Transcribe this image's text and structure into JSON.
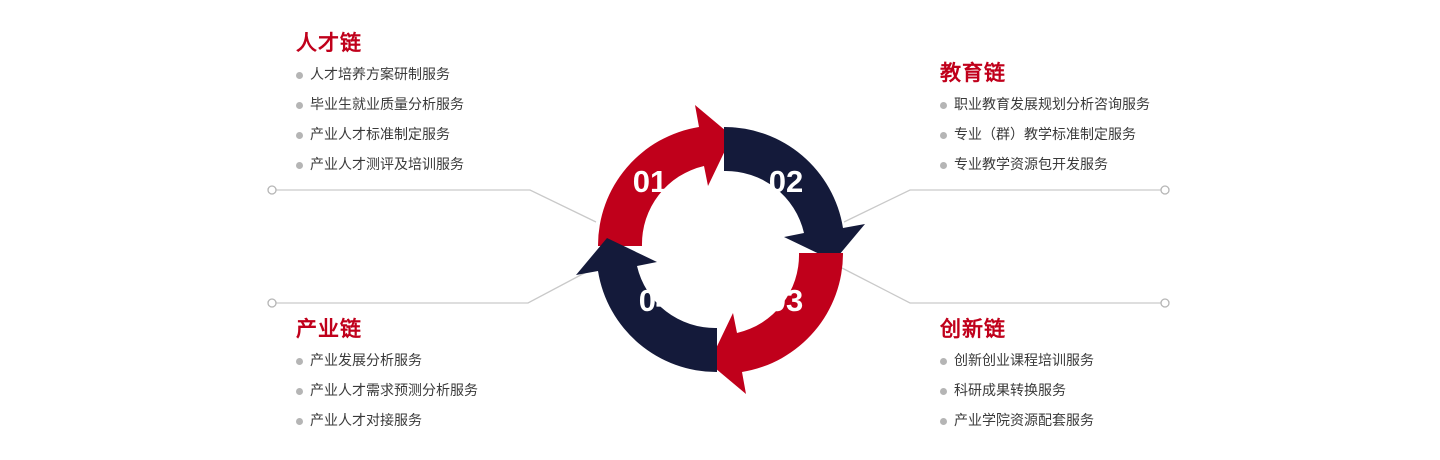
{
  "groups": {
    "talent": {
      "title": "人才链",
      "items": [
        "人才培养方案研制服务",
        "毕业生就业质量分析服务",
        "产业人才标准制定服务",
        "产业人才测评及培训服务"
      ]
    },
    "education": {
      "title": "教育链",
      "items": [
        "职业教育发展规划分析咨询服务",
        "专业（群）教学标准制定服务",
        "专业教学资源包开发服务"
      ]
    },
    "industry": {
      "title": "产业链",
      "items": [
        "产业发展分析服务",
        "产业人才需求预测分析服务",
        "产业人才对接服务"
      ]
    },
    "innovation": {
      "title": "创新链",
      "items": [
        "创新创业课程培训服务",
        "科研成果转换服务",
        "产业学院资源配套服务"
      ]
    }
  },
  "cycle": {
    "labels": [
      "01",
      "02",
      "03",
      "04"
    ],
    "colors": {
      "red": "#c0001b",
      "navy": "#141a3a",
      "line": "#c9c9c9",
      "bullet": "#b5b5b5"
    }
  }
}
